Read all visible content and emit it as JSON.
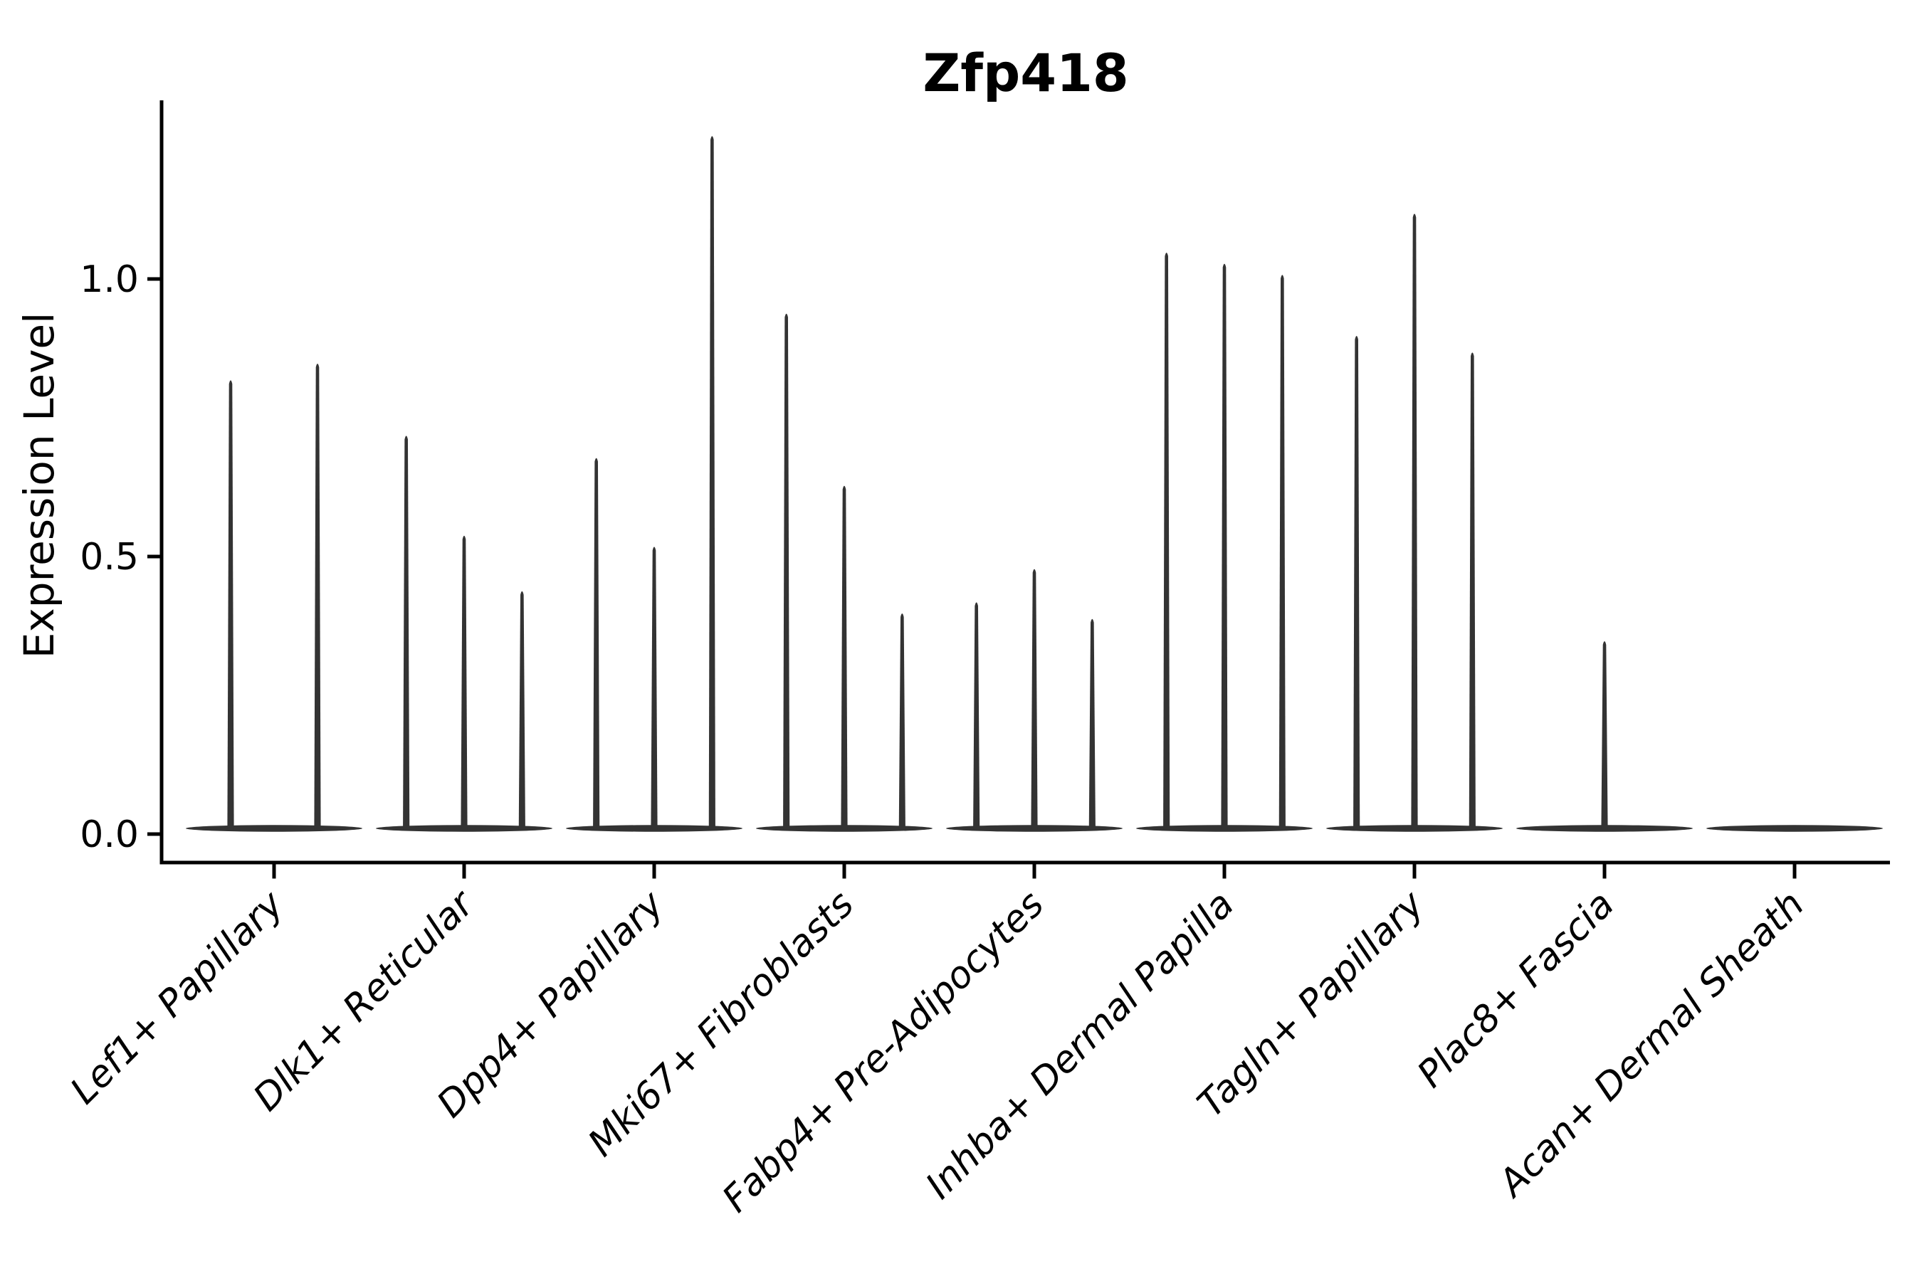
{
  "chart_data": {
    "type": "violin",
    "title": "Zfp418",
    "xlabel": "",
    "ylabel": "Expression Level",
    "ytick_labels": [
      "0.0",
      "0.5",
      "1.0"
    ],
    "ytick_values": [
      0.0,
      0.5,
      1.0
    ],
    "ylim": [
      0,
      1.33
    ],
    "grid": false,
    "legend_position": "none",
    "x_tick_label_rotation_deg": 45,
    "x_tick_label_style": "italic",
    "categories": [
      "Lef1+ Papillary",
      "Dlk1+ Reticular",
      "Dpp4+ Papillary",
      "Mki67+ Fibroblasts",
      "Fabp4+ Pre-Adipocytes",
      "Inhba+ Dermal Papilla",
      "Tagln+ Papillary",
      "Plac8+ Fascia",
      "Acan+ Dermal Sheath"
    ],
    "groups": [
      {
        "category": "Lef1+ Papillary",
        "violin_peaks": [
          0.82,
          0.85
        ]
      },
      {
        "category": "Dlk1+ Reticular",
        "violin_peaks": [
          0.72,
          0.54,
          0.44
        ]
      },
      {
        "category": "Dpp4+ Papillary",
        "violin_peaks": [
          0.68,
          0.52,
          1.26
        ]
      },
      {
        "category": "Mki67+ Fibroblasts",
        "violin_peaks": [
          0.94,
          0.63,
          0.4
        ]
      },
      {
        "category": "Fabp4+ Pre-Adipocytes",
        "violin_peaks": [
          0.42,
          0.48,
          0.39
        ]
      },
      {
        "category": "Inhba+ Dermal Papilla",
        "violin_peaks": [
          1.05,
          1.03,
          1.01
        ]
      },
      {
        "category": "Tagln+ Papillary",
        "violin_peaks": [
          0.9,
          1.12,
          0.87
        ]
      },
      {
        "category": "Plac8+ Fascia",
        "violin_peaks": [
          0.35
        ]
      },
      {
        "category": "Acan+ Dermal Sheath",
        "violin_peaks": []
      }
    ],
    "colors": {
      "violin": "#333333",
      "axis": "#000000",
      "text": "#000000",
      "background": "#ffffff"
    }
  }
}
